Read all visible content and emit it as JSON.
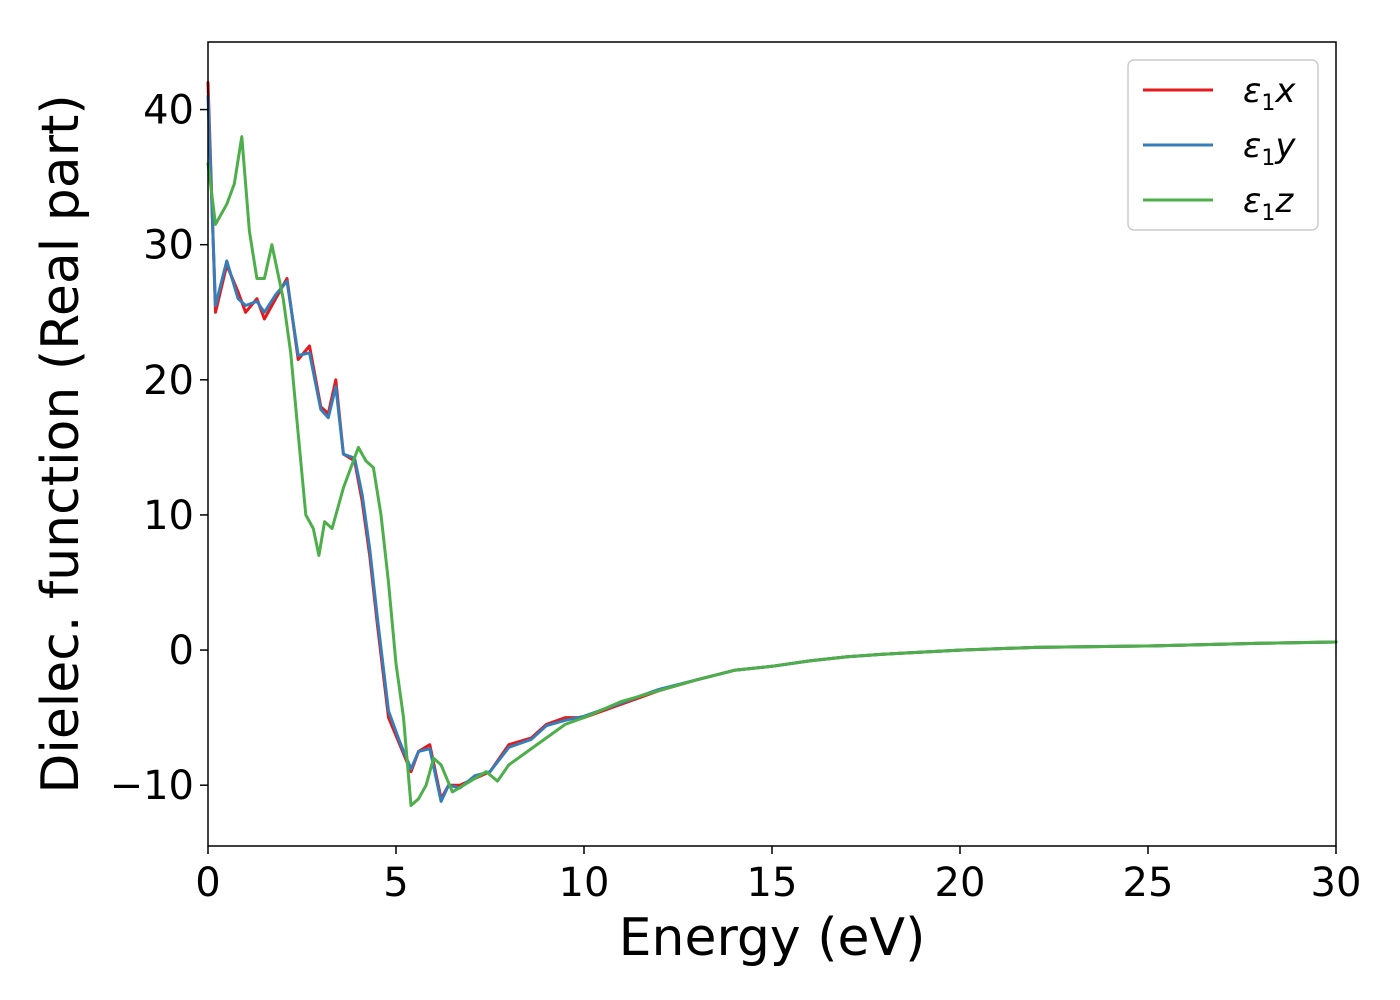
{
  "chart_data": {
    "type": "line",
    "xlabel": "Energy (eV)",
    "ylabel": "Dielec. function (Real part)",
    "xlim": [
      0,
      30
    ],
    "ylim": [
      -14.5,
      45
    ],
    "xticks": [
      0,
      5,
      10,
      15,
      20,
      25,
      30
    ],
    "yticks": [
      -10,
      0,
      10,
      20,
      30,
      40
    ],
    "ytick_labels": [
      "−10",
      "0",
      "10",
      "20",
      "30",
      "40"
    ],
    "grid": false,
    "legend_position": "top-right",
    "series": [
      {
        "name": "ε1x",
        "label_main": "ε",
        "label_sub": "1",
        "label_tail": "x",
        "color": "#e41a1c",
        "x": [
          0,
          0.2,
          0.5,
          0.8,
          1.0,
          1.3,
          1.5,
          1.8,
          2.1,
          2.4,
          2.7,
          3.0,
          3.2,
          3.4,
          3.6,
          3.9,
          4.1,
          4.3,
          4.5,
          4.8,
          5.1,
          5.4,
          5.6,
          5.9,
          6.2,
          6.4,
          6.7,
          7.1,
          7.5,
          8.0,
          8.6,
          9.0,
          9.5,
          10,
          11,
          12,
          13,
          14,
          15,
          16,
          17,
          18,
          20,
          22,
          25,
          28,
          30
        ],
        "y": [
          42,
          25,
          28.5,
          26.5,
          25,
          26,
          24.5,
          26,
          27.5,
          21.5,
          22.5,
          18,
          17.5,
          20,
          14.5,
          14,
          11,
          7,
          2,
          -5,
          -7,
          -9,
          -7.5,
          -7,
          -11,
          -10,
          -10,
          -9.5,
          -9,
          -7,
          -6.5,
          -5.5,
          -5,
          -5,
          -4,
          -3,
          -2.2,
          -1.5,
          -1.2,
          -0.8,
          -0.5,
          -0.3,
          0,
          0.2,
          0.3,
          0.5,
          0.6
        ]
      },
      {
        "name": "ε1y",
        "label_main": "ε",
        "label_sub": "1",
        "label_tail": "y",
        "color": "#377eb8",
        "x": [
          0,
          0.2,
          0.5,
          0.8,
          1.0,
          1.3,
          1.5,
          1.8,
          2.1,
          2.4,
          2.7,
          3.0,
          3.2,
          3.4,
          3.6,
          3.9,
          4.1,
          4.3,
          4.5,
          4.8,
          5.1,
          5.4,
          5.6,
          5.9,
          6.2,
          6.4,
          6.7,
          7.1,
          7.5,
          8.0,
          8.6,
          9.0,
          9.5,
          10,
          11,
          12,
          13,
          14,
          15,
          16,
          17,
          18,
          20,
          22,
          25,
          28,
          30
        ],
        "y": [
          41,
          25.5,
          28.8,
          26,
          25.5,
          25.8,
          25,
          26.3,
          27.3,
          21.8,
          22,
          17.8,
          17.2,
          19.5,
          14.5,
          14.2,
          11.5,
          7.5,
          2.5,
          -4.5,
          -6.8,
          -8.8,
          -7.5,
          -7.3,
          -11.2,
          -10,
          -10.2,
          -9.3,
          -9,
          -7.2,
          -6.6,
          -5.6,
          -5.2,
          -4.9,
          -3.9,
          -2.9,
          -2.2,
          -1.5,
          -1.2,
          -0.8,
          -0.5,
          -0.3,
          0,
          0.2,
          0.3,
          0.5,
          0.6
        ]
      },
      {
        "name": "ε1z",
        "label_main": "ε",
        "label_sub": "1",
        "label_tail": "z",
        "color": "#4daf4a",
        "x": [
          0,
          0.2,
          0.5,
          0.7,
          0.9,
          1.1,
          1.3,
          1.5,
          1.7,
          2.0,
          2.2,
          2.4,
          2.6,
          2.8,
          2.95,
          3.1,
          3.3,
          3.6,
          3.8,
          4.0,
          4.2,
          4.4,
          4.6,
          4.8,
          5.0,
          5.2,
          5.4,
          5.6,
          5.8,
          6.0,
          6.2,
          6.5,
          6.8,
          7.1,
          7.4,
          7.7,
          8.0,
          8.5,
          9.0,
          9.5,
          10,
          11,
          12,
          13,
          14,
          15,
          16,
          17,
          18,
          20,
          22,
          25,
          28,
          30
        ],
        "y": [
          36,
          31.5,
          33,
          34.5,
          38,
          31,
          27.5,
          27.5,
          30,
          26,
          22,
          16,
          10,
          9,
          7,
          9.5,
          9,
          12,
          13.5,
          15,
          14,
          13.5,
          10,
          5,
          -1,
          -5,
          -11.5,
          -11,
          -10,
          -8,
          -8.5,
          -10.5,
          -10,
          -9.5,
          -9,
          -9.7,
          -8.5,
          -7.5,
          -6.5,
          -5.5,
          -5,
          -3.8,
          -3,
          -2.2,
          -1.5,
          -1.2,
          -0.8,
          -0.5,
          -0.3,
          0,
          0.2,
          0.3,
          0.5,
          0.6
        ]
      }
    ]
  }
}
